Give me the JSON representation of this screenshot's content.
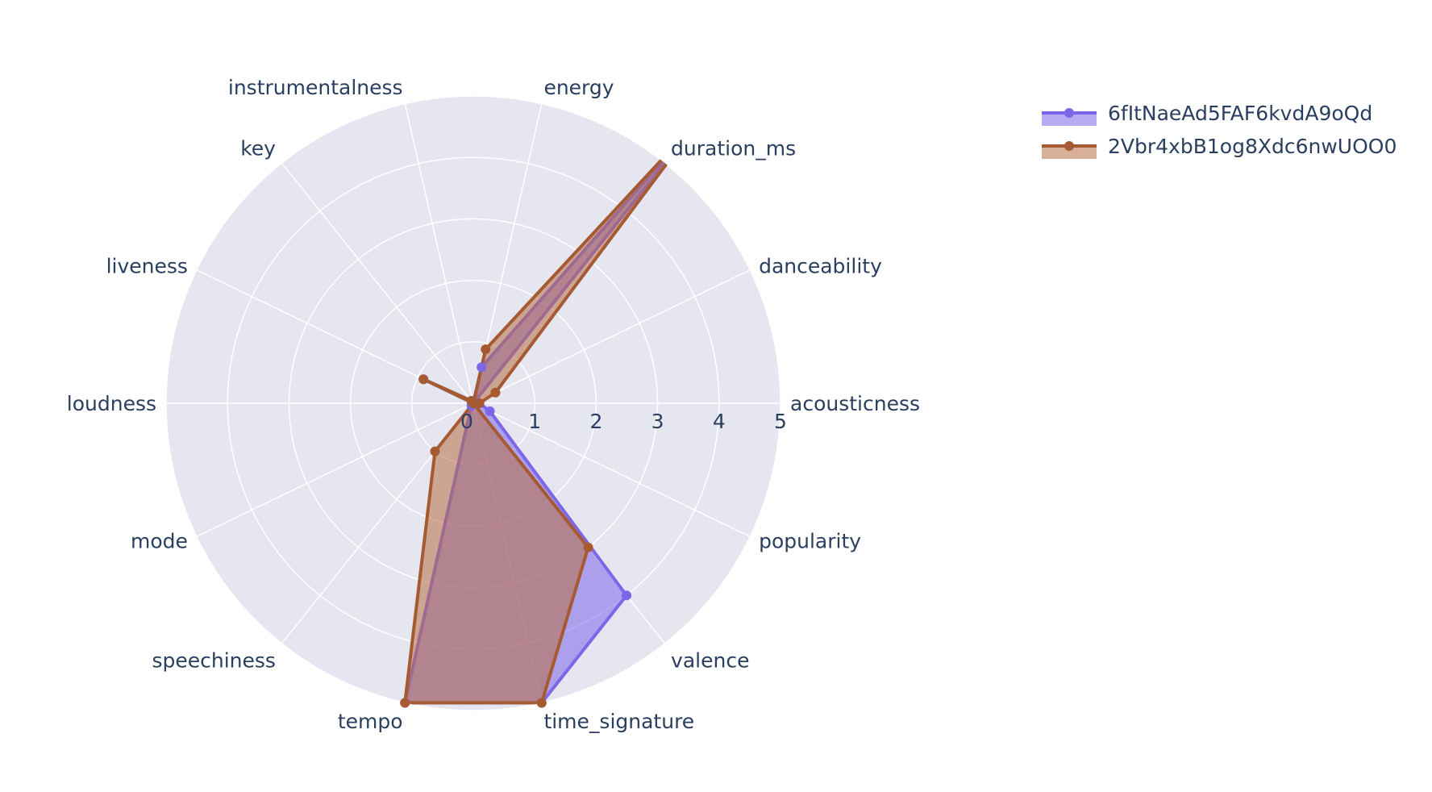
{
  "chart_data": {
    "type": "radar",
    "grid": true,
    "legend_position": "top-right",
    "radial_range": [
      0,
      5
    ],
    "radial_ticks": [
      "0",
      "1",
      "2",
      "3",
      "4",
      "5"
    ],
    "categories": [
      "acousticness",
      "danceability",
      "duration_ms",
      "energy",
      "instrumentalness",
      "key",
      "liveness",
      "loudness",
      "mode",
      "speechiness",
      "tempo",
      "time_signature",
      "valence",
      "popularity"
    ],
    "series": [
      {
        "name": "6fItNaeAd5FAF6kvdA9oQd",
        "color": "#7e66e9",
        "fill": "rgba(126,102,233,0.55)",
        "values": [
          0.1,
          0.0,
          6.0,
          0.6,
          0.0,
          0.05,
          0.9,
          0.0,
          0.0,
          0.05,
          5.0,
          5.0,
          4.0,
          0.3
        ]
      },
      {
        "name": "2Vbr4xbB1og8Xdc6nwUOO0",
        "color": "#a65a32",
        "fill": "rgba(184,110,70,0.55)",
        "values": [
          0.1,
          0.4,
          6.0,
          0.9,
          0.0,
          0.05,
          0.9,
          0.0,
          0.0,
          1.0,
          5.0,
          5.0,
          3.0,
          0.0
        ]
      }
    ]
  },
  "legend": {
    "items": [
      {
        "label": "6fItNaeAd5FAF6kvdA9oQd"
      },
      {
        "label": "2Vbr4xbB1og8Xdc6nwUOO0"
      }
    ]
  },
  "colors": {
    "plot_background": "#e5e6f0",
    "grid": "#ffffff",
    "text": "#2a3f5f"
  }
}
